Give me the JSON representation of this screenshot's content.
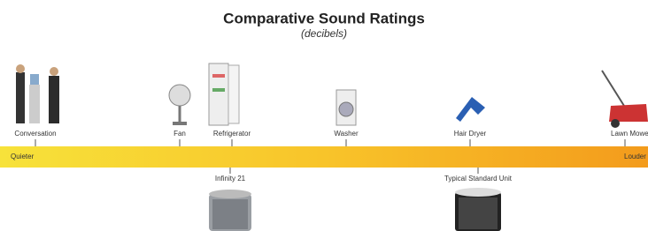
{
  "header": {
    "title": "Comparative Sound Ratings",
    "subtitle": "(decibels)"
  },
  "scale": {
    "low": "Quieter",
    "high": "Louder"
  },
  "sources": [
    {
      "label": "Conversation"
    },
    {
      "label": "Fan"
    },
    {
      "label": "Refrigerator"
    },
    {
      "label": "Washer"
    },
    {
      "label": "Hair Dryer"
    },
    {
      "label": "Lawn Mower"
    }
  ],
  "units": [
    {
      "label": "Infinity 21"
    },
    {
      "label": "Typical Standard Unit"
    }
  ]
}
